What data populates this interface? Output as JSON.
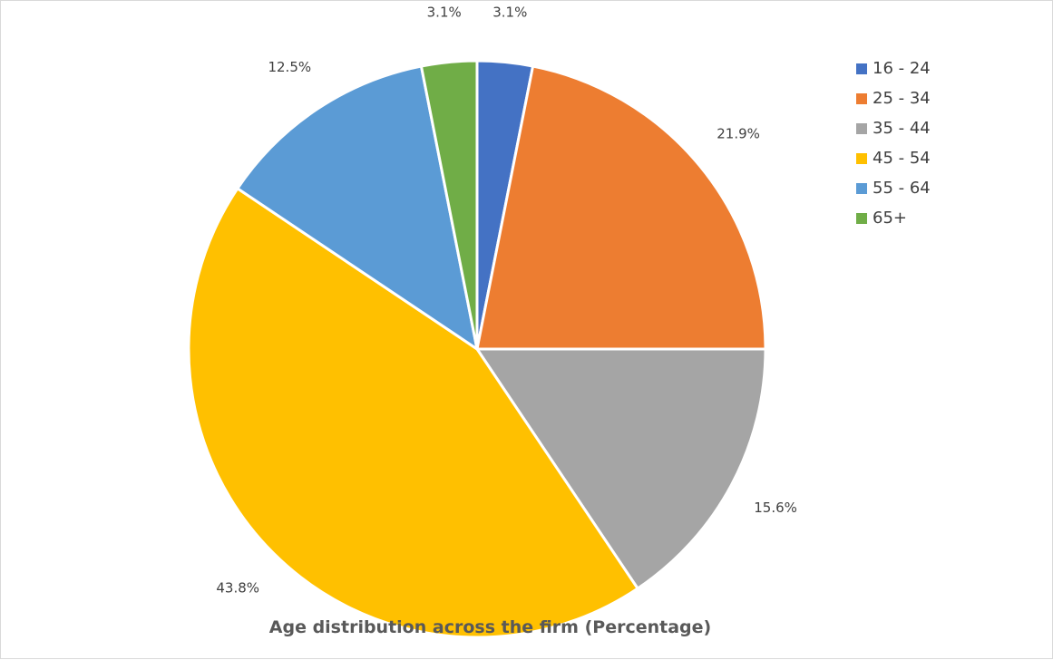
{
  "chart_data": {
    "type": "pie",
    "title": "Age distribution across the firm (Percentage)",
    "legend_position": "top-right",
    "start_angle_deg": 0,
    "direction": "clockwise",
    "slices": [
      {
        "label": "16 - 24",
        "value": 3.1,
        "display": "3.1%",
        "color": "#4472C4"
      },
      {
        "label": "25 - 34",
        "value": 21.9,
        "display": "21.9%",
        "color": "#ED7D31"
      },
      {
        "label": "35 - 44",
        "value": 15.6,
        "display": "15.6%",
        "color": "#A5A5A5"
      },
      {
        "label": "45 - 54",
        "value": 43.8,
        "display": "43.8%",
        "color": "#FFC000"
      },
      {
        "label": "55 - 64",
        "value": 12.5,
        "display": "12.5%",
        "color": "#5B9BD5"
      },
      {
        "label": "65+",
        "value": 3.1,
        "display": "3.1%",
        "color": "#70AD47"
      }
    ]
  }
}
